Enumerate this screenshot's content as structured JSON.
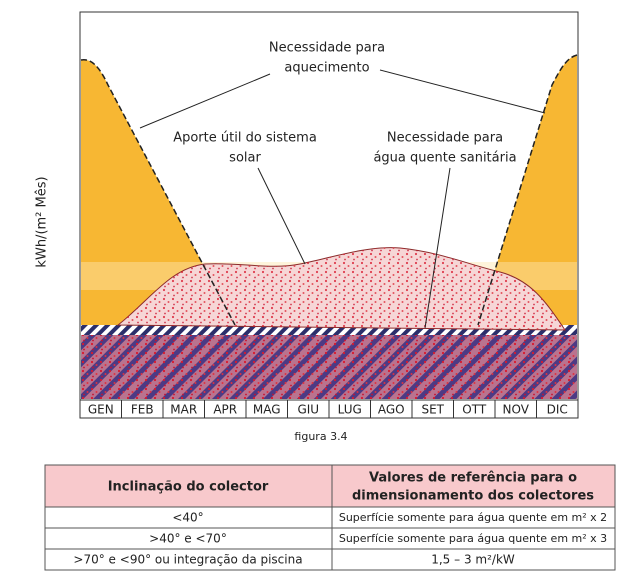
{
  "chart": {
    "y_axis_label": "kWh/(m² Mês)",
    "annotations": [
      {
        "lines": [
          "Necessidade para",
          "aquecimento"
        ]
      },
      {
        "lines": [
          "Aporte útil do sistema",
          "solar"
        ]
      },
      {
        "lines": [
          "Necessidade para",
          "água quente sanitária"
        ]
      }
    ],
    "months": [
      "GEN",
      "FEB",
      "MAR",
      "APR",
      "MAG",
      "GIU",
      "LUG",
      "AGO",
      "SET",
      "OTT",
      "NOV",
      "DIC"
    ],
    "caption": "figura 3.4"
  },
  "table": {
    "header": [
      [
        "Inclinação do colector"
      ],
      [
        "Valores de referência para o",
        "dimensionamento dos colectores"
      ]
    ],
    "rows": [
      [
        "<40°",
        "Superfície somente para água quente em m² x 2"
      ],
      [
        ">40° e <70°",
        "Superfície somente para água quente em m² x 3"
      ],
      [
        ">70°  e <90° ou integração da piscina",
        "1,5 – 3 m²/kW"
      ]
    ]
  }
}
